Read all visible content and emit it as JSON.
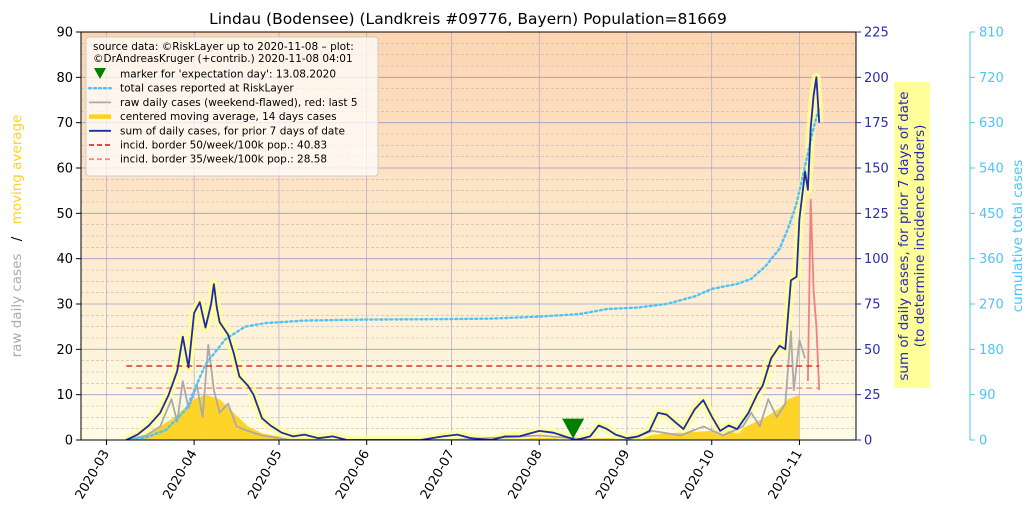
{
  "chart_data": {
    "type": "line",
    "title": "Lindau (Bodensee) (Landkreis #09776, Bayern) Population=81669",
    "y_left": {
      "label_part1": "raw daily cases",
      "label_sep": "/",
      "label_part2": "moving average",
      "ylim": [
        0,
        90
      ],
      "ticks": [
        0,
        10,
        20,
        30,
        40,
        50,
        60,
        70,
        80,
        90
      ]
    },
    "y_right1": {
      "label_line1": "sum of daily cases, for prior 7 days of date",
      "label_line2": "(to determine incidence borders)",
      "ylim": [
        0,
        225
      ],
      "ticks": [
        0,
        25,
        50,
        75,
        100,
        125,
        150,
        175,
        200,
        225
      ]
    },
    "y_right2": {
      "label": "cumulative total cases",
      "ylim": [
        0,
        810
      ],
      "ticks": [
        0,
        90,
        180,
        270,
        360,
        450,
        540,
        630,
        720,
        810
      ]
    },
    "x_ticks": [
      "2020-03",
      "2020-04",
      "2020-05",
      "2020-06",
      "2020-07",
      "2020-08",
      "2020-09",
      "2020-10",
      "2020-11"
    ],
    "x_tick_dates": [
      "2020-03-01",
      "2020-04-01",
      "2020-05-01",
      "2020-06-01",
      "2020-07-01",
      "2020-08-01",
      "2020-09-01",
      "2020-10-01",
      "2020-11-01"
    ],
    "xlim": [
      "2020-02-21",
      "2020-11-21"
    ],
    "legend": {
      "placement": "top-left",
      "header_line1": "source data: ©RiskLayer up to 2020-11-08 – plot:",
      "header_line2": "©DrAndreasKruger (+contrib.) 2020-11-08 04:01",
      "entries": [
        {
          "label": "marker for 'expectation day': 13.08.2020",
          "kind": "marker",
          "color": "#008000"
        },
        {
          "label": "total cases reported at RiskLayer",
          "kind": "dotted",
          "color": "#4fc3f7"
        },
        {
          "label": "raw daily cases (weekend-flawed), red: last 5",
          "kind": "line",
          "color": "#aaaaaa"
        },
        {
          "label": "centered moving average, 14 days cases",
          "kind": "thick",
          "color": "#ffd21f"
        },
        {
          "label": "sum of daily cases, for prior 7 days of date",
          "kind": "line",
          "color": "#1f2aa8"
        },
        {
          "label": "incid. border 50/week/100k pop.: 40.83",
          "kind": "dashed",
          "color": "#e03030"
        },
        {
          "label": "incid. border 35/week/100k pop.: 28.58",
          "kind": "dashed",
          "color": "#f08a8a"
        }
      ]
    },
    "expectation_day": {
      "date": "2020-08-13",
      "left_value": 2.5
    },
    "incidence_borders": [
      {
        "name": "50/week/100k",
        "value_right1": 40.83,
        "start": "2020-03-08",
        "end": "2020-11-08",
        "color": "#e03030"
      },
      {
        "name": "35/week/100k",
        "value_right1": 28.58,
        "start": "2020-03-08",
        "end": "2020-11-08",
        "color": "#f08a8a"
      }
    ],
    "colors": {
      "bg_top": "#fdd5b2",
      "bg_bottom": "#fffce6",
      "left_axis": "#000000",
      "right1_axis": "#2b2bb0",
      "right2_axis": "#4fc3f7",
      "label_raw": "#aaaaaa",
      "label_avg": "#ffd21f",
      "moving_avg_fill": "#ffd21f",
      "highlight_band": "#ffff99",
      "raw_last5": "#f08080",
      "grid": "#8888cc"
    },
    "series": {
      "sum7_right1": [
        [
          "2020-03-08",
          0
        ],
        [
          "2020-03-12",
          3
        ],
        [
          "2020-03-16",
          8
        ],
        [
          "2020-03-20",
          15
        ],
        [
          "2020-03-23",
          25
        ],
        [
          "2020-03-26",
          38
        ],
        [
          "2020-03-28",
          57
        ],
        [
          "2020-03-30",
          40
        ],
        [
          "2020-04-01",
          70
        ],
        [
          "2020-04-03",
          76
        ],
        [
          "2020-04-05",
          62
        ],
        [
          "2020-04-07",
          75
        ],
        [
          "2020-04-08",
          86
        ],
        [
          "2020-04-09",
          73
        ],
        [
          "2020-04-10",
          65
        ],
        [
          "2020-04-13",
          58
        ],
        [
          "2020-04-15",
          48
        ],
        [
          "2020-04-17",
          35
        ],
        [
          "2020-04-20",
          30
        ],
        [
          "2020-04-22",
          25
        ],
        [
          "2020-04-25",
          12
        ],
        [
          "2020-04-28",
          8
        ],
        [
          "2020-05-02",
          4
        ],
        [
          "2020-05-06",
          2
        ],
        [
          "2020-05-10",
          3
        ],
        [
          "2020-05-15",
          1
        ],
        [
          "2020-05-20",
          2
        ],
        [
          "2020-05-25",
          0
        ],
        [
          "2020-06-05",
          0
        ],
        [
          "2020-06-20",
          0
        ],
        [
          "2020-06-28",
          2
        ],
        [
          "2020-07-03",
          3
        ],
        [
          "2020-07-08",
          1
        ],
        [
          "2020-07-15",
          0
        ],
        [
          "2020-07-20",
          2
        ],
        [
          "2020-07-25",
          2
        ],
        [
          "2020-08-01",
          5
        ],
        [
          "2020-08-06",
          4
        ],
        [
          "2020-08-10",
          2
        ],
        [
          "2020-08-14",
          0
        ],
        [
          "2020-08-19",
          2
        ],
        [
          "2020-08-22",
          8
        ],
        [
          "2020-08-25",
          6
        ],
        [
          "2020-08-28",
          3
        ],
        [
          "2020-09-01",
          1
        ],
        [
          "2020-09-05",
          2
        ],
        [
          "2020-09-09",
          5
        ],
        [
          "2020-09-12",
          15
        ],
        [
          "2020-09-15",
          14
        ],
        [
          "2020-09-18",
          10
        ],
        [
          "2020-09-21",
          6
        ],
        [
          "2020-09-25",
          17
        ],
        [
          "2020-09-28",
          22
        ],
        [
          "2020-10-01",
          13
        ],
        [
          "2020-10-04",
          5
        ],
        [
          "2020-10-07",
          8
        ],
        [
          "2020-10-10",
          6
        ],
        [
          "2020-10-14",
          15
        ],
        [
          "2020-10-17",
          25
        ],
        [
          "2020-10-19",
          30
        ],
        [
          "2020-10-22",
          45
        ],
        [
          "2020-10-25",
          52
        ],
        [
          "2020-10-27",
          50
        ],
        [
          "2020-10-29",
          88
        ],
        [
          "2020-10-31",
          90
        ],
        [
          "2020-11-01",
          122
        ],
        [
          "2020-11-03",
          148
        ],
        [
          "2020-11-04",
          138
        ],
        [
          "2020-11-05",
          172
        ],
        [
          "2020-11-06",
          190
        ],
        [
          "2020-11-07",
          200
        ],
        [
          "2020-11-08",
          175
        ]
      ],
      "moving_avg_left": [
        [
          "2020-03-08",
          0
        ],
        [
          "2020-03-15",
          1
        ],
        [
          "2020-03-20",
          3
        ],
        [
          "2020-03-25",
          5
        ],
        [
          "2020-04-01",
          9
        ],
        [
          "2020-04-05",
          10
        ],
        [
          "2020-04-10",
          9
        ],
        [
          "2020-04-15",
          6
        ],
        [
          "2020-04-20",
          3
        ],
        [
          "2020-04-25",
          1.5
        ],
        [
          "2020-05-01",
          0.8
        ],
        [
          "2020-05-15",
          0.3
        ],
        [
          "2020-06-01",
          0
        ],
        [
          "2020-07-01",
          0.3
        ],
        [
          "2020-08-01",
          0.5
        ],
        [
          "2020-08-15",
          0.3
        ],
        [
          "2020-09-01",
          0.5
        ],
        [
          "2020-09-15",
          1.5
        ],
        [
          "2020-10-01",
          2
        ],
        [
          "2020-10-10",
          2
        ],
        [
          "2020-10-15",
          3.5
        ],
        [
          "2020-10-20",
          5
        ],
        [
          "2020-10-25",
          7
        ],
        [
          "2020-10-28",
          9
        ],
        [
          "2020-11-01",
          10
        ],
        [
          "2020-11-01",
          0
        ]
      ],
      "raw_daily_left": [
        [
          "2020-03-08",
          0
        ],
        [
          "2020-03-15",
          1
        ],
        [
          "2020-03-20",
          3
        ],
        [
          "2020-03-24",
          9
        ],
        [
          "2020-03-26",
          4
        ],
        [
          "2020-03-28",
          13
        ],
        [
          "2020-03-30",
          7
        ],
        [
          "2020-04-02",
          12
        ],
        [
          "2020-04-04",
          5
        ],
        [
          "2020-04-06",
          21
        ],
        [
          "2020-04-08",
          11
        ],
        [
          "2020-04-10",
          6
        ],
        [
          "2020-04-13",
          8
        ],
        [
          "2020-04-16",
          3
        ],
        [
          "2020-04-20",
          2
        ],
        [
          "2020-04-25",
          1
        ],
        [
          "2020-05-05",
          0
        ],
        [
          "2020-06-01",
          0
        ],
        [
          "2020-07-01",
          0
        ],
        [
          "2020-08-01",
          1
        ],
        [
          "2020-08-20",
          0
        ],
        [
          "2020-09-01",
          0
        ],
        [
          "2020-09-10",
          2
        ],
        [
          "2020-09-20",
          1
        ],
        [
          "2020-09-28",
          3
        ],
        [
          "2020-10-05",
          1
        ],
        [
          "2020-10-12",
          3
        ],
        [
          "2020-10-15",
          6
        ],
        [
          "2020-10-18",
          3
        ],
        [
          "2020-10-21",
          9
        ],
        [
          "2020-10-24",
          5
        ],
        [
          "2020-10-27",
          8
        ],
        [
          "2020-10-29",
          24
        ],
        [
          "2020-10-30",
          11
        ],
        [
          "2020-11-01",
          22
        ],
        [
          "2020-11-03",
          18
        ]
      ],
      "raw_last5_left": [
        [
          "2020-11-04",
          13
        ],
        [
          "2020-11-05",
          53
        ],
        [
          "2020-11-06",
          33
        ],
        [
          "2020-11-07",
          25
        ],
        [
          "2020-11-08",
          11
        ]
      ],
      "cumulative_right2": [
        [
          "2020-03-08",
          0
        ],
        [
          "2020-03-15",
          5
        ],
        [
          "2020-03-22",
          20
        ],
        [
          "2020-03-29",
          60
        ],
        [
          "2020-04-05",
          150
        ],
        [
          "2020-04-12",
          200
        ],
        [
          "2020-04-19",
          225
        ],
        [
          "2020-04-26",
          232
        ],
        [
          "2020-05-10",
          237
        ],
        [
          "2020-05-31",
          239
        ],
        [
          "2020-06-30",
          240
        ],
        [
          "2020-07-15",
          241
        ],
        [
          "2020-08-01",
          245
        ],
        [
          "2020-08-15",
          250
        ],
        [
          "2020-08-20",
          255
        ],
        [
          "2020-08-25",
          260
        ],
        [
          "2020-09-05",
          263
        ],
        [
          "2020-09-15",
          270
        ],
        [
          "2020-09-25",
          285
        ],
        [
          "2020-10-01",
          300
        ],
        [
          "2020-10-10",
          310
        ],
        [
          "2020-10-15",
          320
        ],
        [
          "2020-10-20",
          345
        ],
        [
          "2020-10-25",
          380
        ],
        [
          "2020-10-28",
          420
        ],
        [
          "2020-10-31",
          470
        ],
        [
          "2020-11-02",
          520
        ],
        [
          "2020-11-04",
          570
        ],
        [
          "2020-11-06",
          620
        ],
        [
          "2020-11-08",
          660
        ]
      ]
    }
  }
}
